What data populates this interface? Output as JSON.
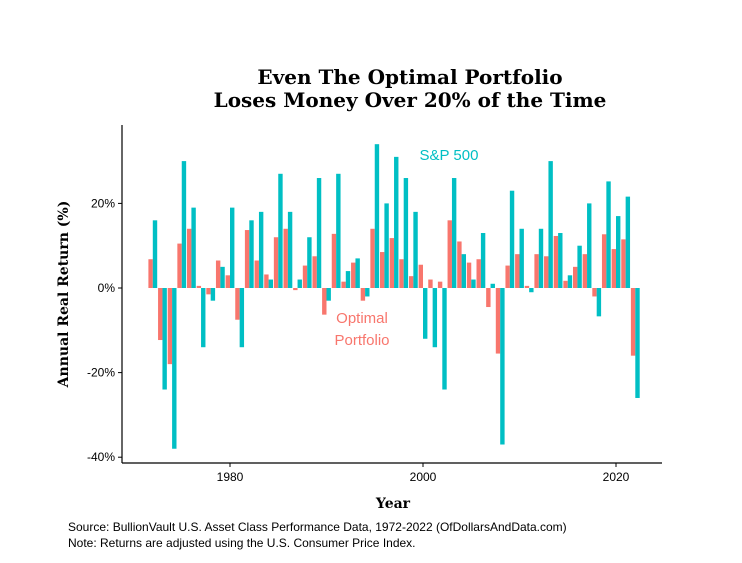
{
  "chart_data": {
    "type": "bar",
    "title": [
      "Even The Optimal Portfolio",
      "Loses Money Over 20% of the Time"
    ],
    "xlabel": "Year",
    "ylabel": "Annual Real Return (%)",
    "xlim": [
      1970,
      2025
    ],
    "ylim": [
      -42,
      38
    ],
    "x_ticks": [
      1980,
      2000,
      2020
    ],
    "x_tick_labels": [
      "1980",
      "2000",
      "2020"
    ],
    "y_ticks": [
      -40,
      -20,
      0,
      20
    ],
    "y_tick_labels": [
      "-40%",
      "-20%",
      "0%",
      "20%"
    ],
    "grid": false,
    "x": [
      1972,
      1973,
      1974,
      1975,
      1976,
      1977,
      1978,
      1979,
      1980,
      1981,
      1982,
      1983,
      1984,
      1985,
      1986,
      1987,
      1988,
      1989,
      1990,
      1991,
      1992,
      1993,
      1994,
      1995,
      1996,
      1997,
      1998,
      1999,
      2000,
      2001,
      2002,
      2003,
      2004,
      2005,
      2006,
      2007,
      2008,
      2009,
      2010,
      2011,
      2012,
      2013,
      2014,
      2015,
      2016,
      2017,
      2018,
      2019,
      2020,
      2021,
      2022
    ],
    "series": [
      {
        "name": "Optimal Portfolio",
        "color": "#F8766D",
        "values": [
          6.8,
          -12.3,
          -18,
          10.5,
          14,
          0.5,
          -1.5,
          6.5,
          3,
          -7.5,
          13.7,
          6.5,
          3.2,
          12,
          14,
          -0.5,
          5.3,
          7.5,
          -6.3,
          12.8,
          1.5,
          6,
          -3,
          14,
          8.5,
          11.8,
          6.8,
          2.8,
          5.5,
          2,
          1.5,
          16,
          11,
          6,
          6.8,
          -4.5,
          -15.5,
          5.3,
          8,
          0.5,
          8,
          7.5,
          12.3,
          1.7,
          5,
          8,
          -2,
          12.7,
          9.2,
          11.5,
          -16
        ]
      },
      {
        "name": "S&P 500",
        "color": "#00BFC4",
        "values": [
          16,
          -24,
          -38,
          30,
          19,
          -14,
          -3,
          5,
          19,
          -14,
          16,
          18,
          2,
          27,
          18,
          2,
          12,
          26,
          -3,
          27,
          4,
          7,
          -2,
          34,
          20,
          31,
          26,
          18,
          -12,
          -14,
          -24,
          26,
          8,
          2,
          13,
          1,
          -37,
          23,
          14,
          -1,
          14,
          30,
          13,
          3,
          10,
          20,
          -6.7,
          25.2,
          17,
          21.6,
          -26
        ]
      }
    ],
    "annotations": [
      "S&P 500",
      "Optimal",
      "Portfolio"
    ]
  },
  "source": {
    "line1": "Source: BullionVault U.S. Asset Class Performance Data, 1972-2022 (OfDollarsAndData.com)",
    "line2": "Note: Returns are adjusted using the U.S. Consumer Price Index."
  }
}
